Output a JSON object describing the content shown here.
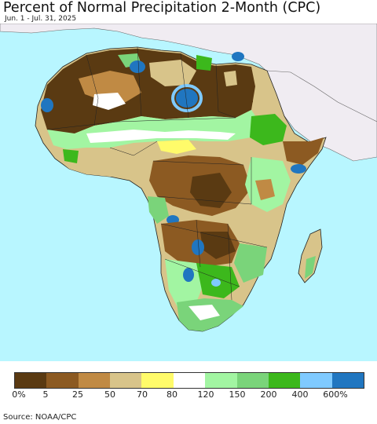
{
  "title": "Percent of Normal Precipitation 2-Month (CPC)",
  "subtitle": "Jun. 1 - Jul. 31, 2025",
  "source": "Source: NOAA/CPC",
  "legend": {
    "colors": [
      "#5a3a12",
      "#8c5a22",
      "#c08a44",
      "#d8c48a",
      "#fffb6a",
      "#ffffff",
      "#a2f5a2",
      "#7ad47a",
      "#3cb81c",
      "#7fcaff",
      "#2076c0"
    ],
    "labels": [
      "0%",
      "5",
      "25",
      "50",
      "70",
      "80",
      "120",
      "150",
      "200",
      "400",
      "600%"
    ]
  },
  "map_colors": {
    "ocean": "#b8f6ff",
    "outside": "#f0ecf2",
    "dark_brown": "#5a3a12",
    "brown": "#8c5a22",
    "tan": "#c08a44",
    "light_tan": "#d8c48a",
    "yellow": "#fffb6a",
    "normal": "#ffffff",
    "light_green": "#a2f5a2",
    "green": "#7ad47a",
    "dark_green": "#3cb81c",
    "light_blue": "#7fcaff",
    "blue": "#2076c0"
  }
}
